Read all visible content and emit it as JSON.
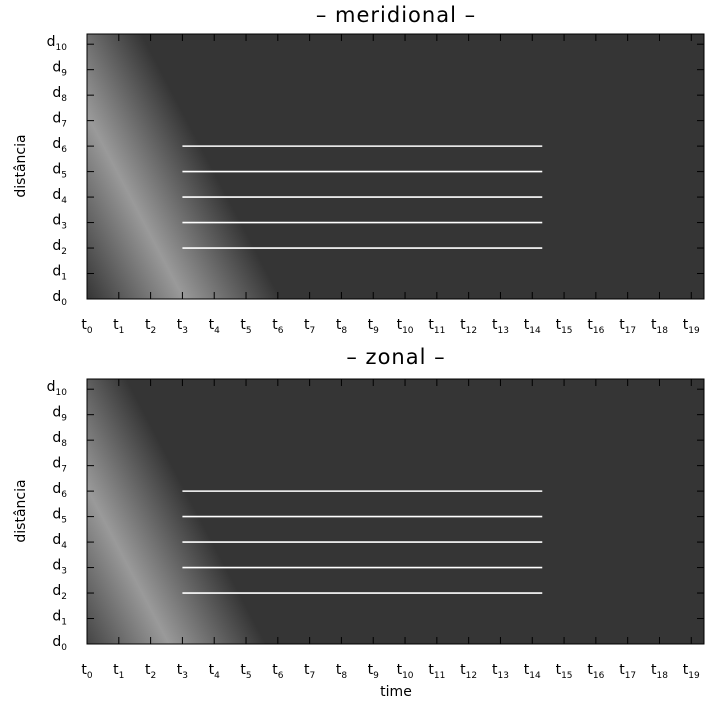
{
  "chart_data": [
    {
      "type": "heatmap",
      "title": "– meridional –",
      "xlabel": "",
      "ylabel": "distância",
      "x_ticks": [
        "t0",
        "t1",
        "t2",
        "t3",
        "t4",
        "t5",
        "t6",
        "t7",
        "t8",
        "t9",
        "t10",
        "t11",
        "t12",
        "t13",
        "t14",
        "t15",
        "t16",
        "t17",
        "t18",
        "t19"
      ],
      "y_ticks": [
        "d0",
        "d1",
        "d2",
        "d3",
        "d4",
        "d5",
        "d6",
        "d7",
        "d8",
        "d9",
        "d10"
      ],
      "colormap": "grayscale",
      "pattern": "diagonal bands; dark ridges shift to later time as distance decreases",
      "overlay_lines": [
        {
          "y": "d2",
          "x_start": "t3",
          "x_end": "t14"
        },
        {
          "y": "d3",
          "x_start": "t3",
          "x_end": "t14"
        },
        {
          "y": "d4",
          "x_start": "t3",
          "x_end": "t14"
        },
        {
          "y": "d5",
          "x_start": "t3",
          "x_end": "t14"
        },
        {
          "y": "d6",
          "x_start": "t3",
          "x_end": "t14"
        }
      ],
      "overlay_color": "#ffffff"
    },
    {
      "type": "heatmap",
      "title": "– zonal –",
      "xlabel": "time",
      "ylabel": "distância",
      "x_ticks": [
        "t0",
        "t1",
        "t2",
        "t3",
        "t4",
        "t5",
        "t6",
        "t7",
        "t8",
        "t9",
        "t10",
        "t11",
        "t12",
        "t13",
        "t14",
        "t15",
        "t16",
        "t17",
        "t18",
        "t19"
      ],
      "y_ticks": [
        "d0",
        "d1",
        "d2",
        "d3",
        "d4",
        "d5",
        "d6",
        "d7",
        "d8",
        "d9",
        "d10"
      ],
      "colormap": "grayscale",
      "pattern": "diagonal bands; dark ridges shift to later time as distance decreases",
      "overlay_lines": [
        {
          "y": "d2",
          "x_start": "t3",
          "x_end": "t14"
        },
        {
          "y": "d3",
          "x_start": "t3",
          "x_end": "t14"
        },
        {
          "y": "d4",
          "x_start": "t3",
          "x_end": "t14"
        },
        {
          "y": "d5",
          "x_start": "t3",
          "x_end": "t14"
        },
        {
          "y": "d6",
          "x_start": "t3",
          "x_end": "t14"
        }
      ],
      "overlay_color": "#ffffff"
    }
  ]
}
